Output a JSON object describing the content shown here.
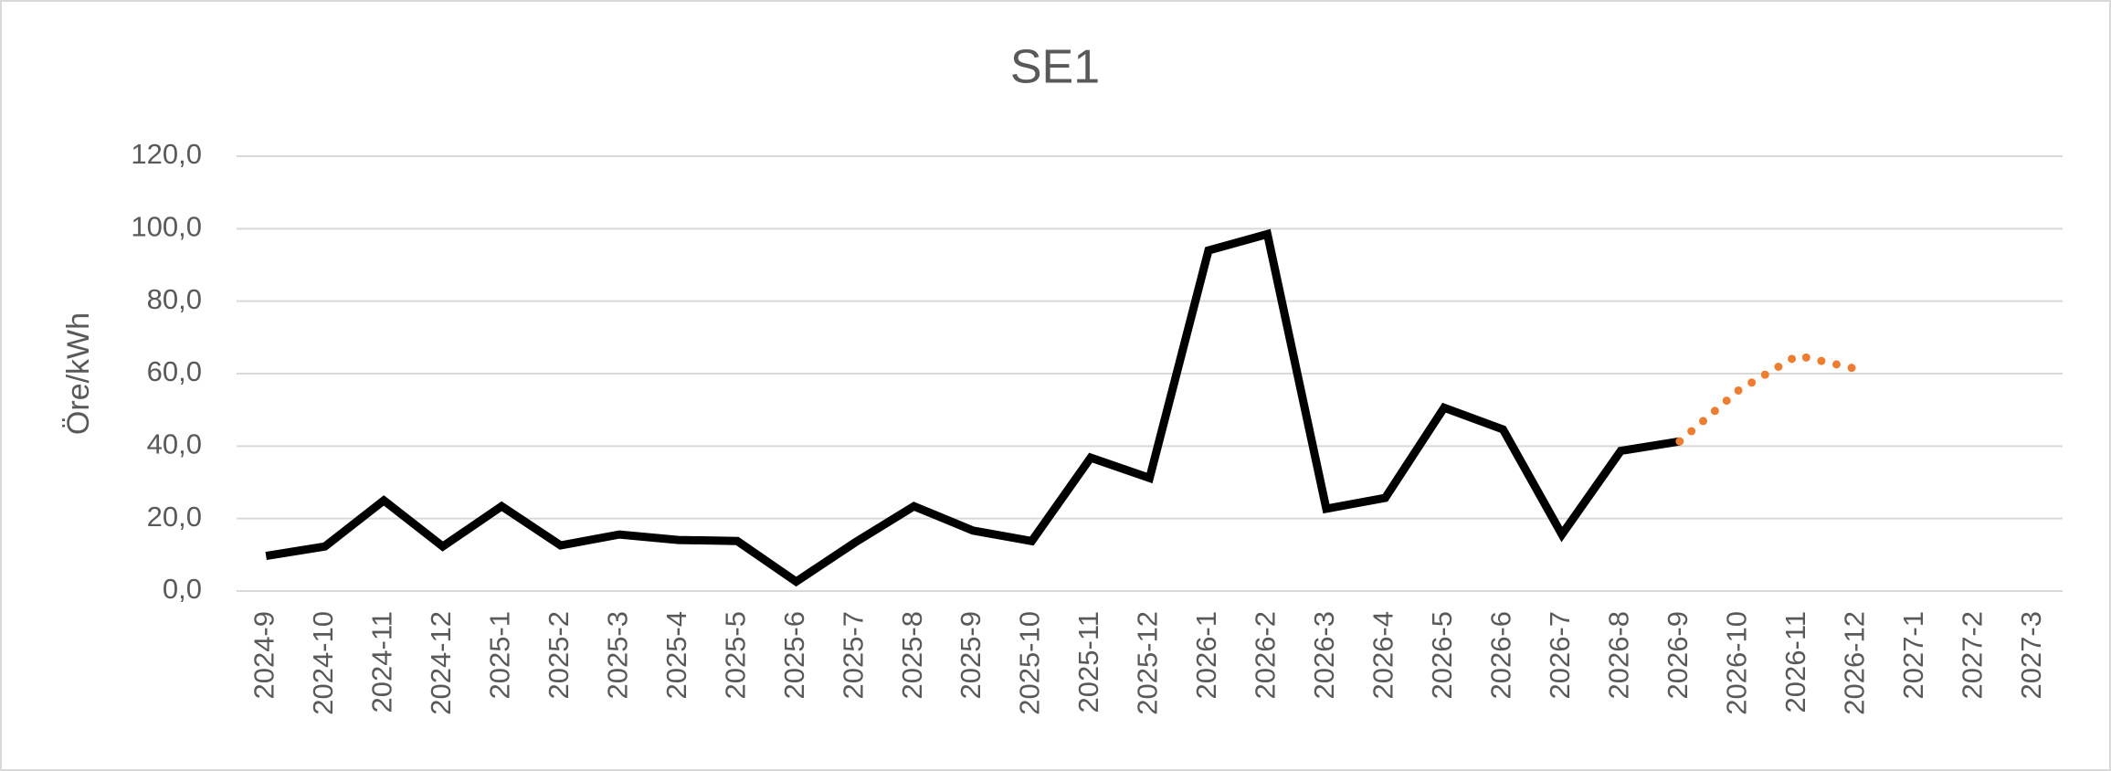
{
  "chart_data": {
    "type": "line",
    "title": "SE1",
    "y_label": "Öre/kWh",
    "categories": [
      "2024-9",
      "2024-10",
      "2024-11",
      "2024-12",
      "2025-1",
      "2025-2",
      "2025-3",
      "2025-4",
      "2025-5",
      "2025-6",
      "2025-7",
      "2025-8",
      "2025-9",
      "2025-10",
      "2025-11",
      "2025-12",
      "2026-1",
      "2026-2",
      "2026-3",
      "2026-4",
      "2026-5",
      "2026-6",
      "2026-7",
      "2026-8",
      "2026-9",
      "2026-10",
      "2026-11",
      "2026-12",
      "2027-1",
      "2027-2",
      "2027-3"
    ],
    "series": [
      {
        "color": "#000000",
        "style": "solid",
        "values": [
          9.7,
          12.3,
          25,
          12.3,
          23.4,
          12.6,
          15.6,
          14.1,
          13.8,
          2.6,
          13.4,
          23.4,
          16.7,
          13.8,
          36.8,
          31.2,
          94,
          98.5,
          22.7,
          25.7,
          50.6,
          44.6,
          15.6,
          38.7,
          41.3,
          null,
          null,
          null,
          null,
          null,
          null
        ]
      },
      {
        "color": "#ed7d31",
        "style": "dotted",
        "values": [
          null,
          null,
          null,
          null,
          null,
          null,
          null,
          null,
          null,
          null,
          null,
          null,
          null,
          null,
          null,
          null,
          null,
          null,
          null,
          null,
          null,
          null,
          null,
          null,
          41.3,
          55.4,
          65,
          61.3,
          null,
          null,
          null
        ]
      }
    ],
    "ylim": [
      0,
      120
    ],
    "yticks": [
      {
        "value": 0,
        "label": "0,0"
      },
      {
        "value": 20,
        "label": "20,0"
      },
      {
        "value": 40,
        "label": "40,0"
      },
      {
        "value": 60,
        "label": "60,0"
      },
      {
        "value": 80,
        "label": "80,0"
      },
      {
        "value": 100,
        "label": "100,0"
      },
      {
        "value": 120,
        "label": "120,0"
      }
    ],
    "grid": true
  }
}
